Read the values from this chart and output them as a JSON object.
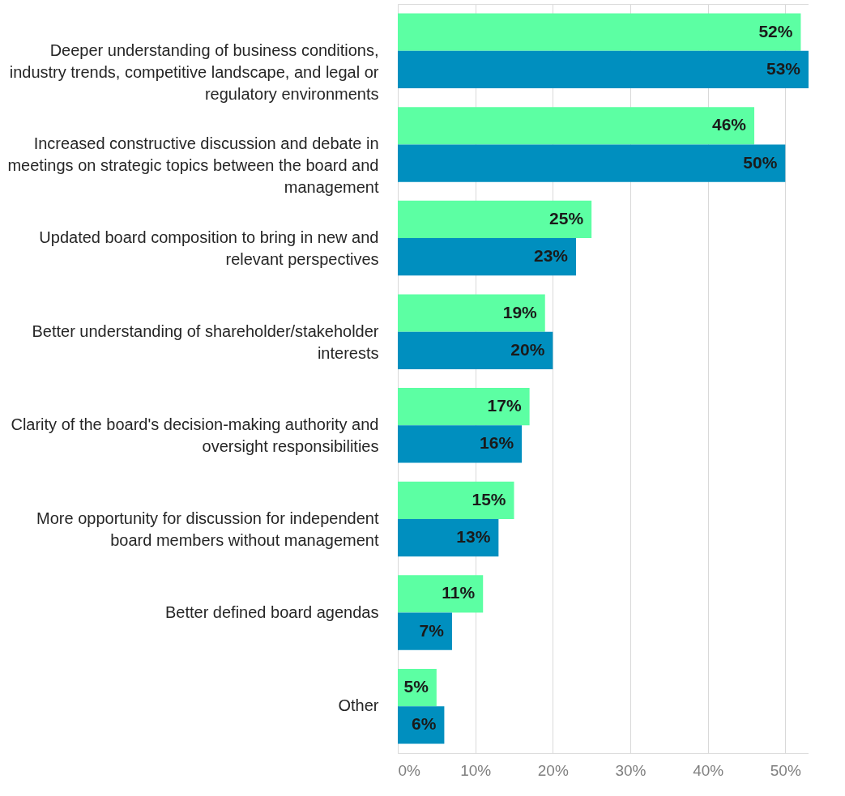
{
  "chart_data": {
    "type": "bar",
    "orientation": "horizontal",
    "categories": [
      "Deeper understanding of business conditions, industry trends, competitive landscape, and legal or regulatory environments",
      "Increased constructive discussion and debate in meetings on strategic topics between the board and management",
      "Updated board composition to bring in new and relevant perspectives",
      "Better understanding of shareholder/stakeholder interests",
      "Clarity of the board's decision-making authority and oversight responsibilities",
      "More opportunity for discussion for independent board members without management",
      "Better defined board agendas",
      "Other"
    ],
    "series": [
      {
        "color": "#5cffa3",
        "values": [
          52,
          46,
          25,
          19,
          17,
          15,
          11,
          5
        ],
        "value_labels": [
          "52%",
          "46%",
          "25%",
          "19%",
          "17%",
          "15%",
          "11%",
          "5%"
        ]
      },
      {
        "color": "#008fbf",
        "values": [
          53,
          50,
          23,
          20,
          16,
          13,
          7,
          6
        ],
        "value_labels": [
          "53%",
          "50%",
          "23%",
          "20%",
          "16%",
          "13%",
          "7%",
          "6%"
        ]
      }
    ],
    "xlim": [
      0,
      53
    ],
    "xticks": [
      {
        "value": 0,
        "label": "0%"
      },
      {
        "value": 10,
        "label": "10%"
      },
      {
        "value": 20,
        "label": "20%"
      },
      {
        "value": 30,
        "label": "30%"
      },
      {
        "value": 40,
        "label": "40%"
      },
      {
        "value": 50,
        "label": "50%"
      }
    ],
    "grid": "x",
    "legend": false
  }
}
